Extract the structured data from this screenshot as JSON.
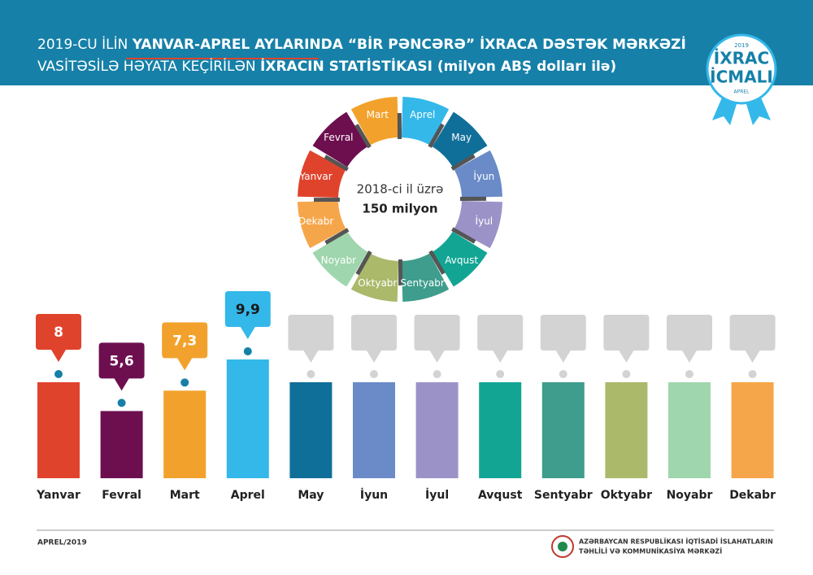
{
  "chart_data": {
    "type": "bar",
    "title_lines": [
      [
        {
          "text": "2019-CU İLİN ",
          "bold": false
        },
        {
          "text": "YANVAR-APREL AYLARINDA",
          "bold": true
        },
        {
          "text": " “BİR PƏNCƏRƏ” İXRACA DƏSTƏK MƏRKƏZİ",
          "bold": true
        }
      ],
      [
        {
          "text": "VASİTƏSİLƏ HƏYATA KEÇİRİLƏN ",
          "bold": false
        },
        {
          "text": "İXRACIN STATİSTİKASI (milyon ABŞ dolları ilə)",
          "bold": true
        }
      ]
    ],
    "badge": {
      "year": "2019",
      "line1": "İXRAC",
      "line2": "İCMALI",
      "month": "APREL"
    },
    "ring_center": {
      "line1": "2018-ci il üzrə",
      "line2": "150 milyon"
    },
    "categories": [
      "Yanvar",
      "Fevral",
      "Mart",
      "Aprel",
      "May",
      "İyun",
      "İyul",
      "Avqust",
      "Sentyabr",
      "Oktyabr",
      "Noyabr",
      "Dekabr"
    ],
    "values": [
      8,
      5.6,
      7.3,
      9.9,
      null,
      null,
      null,
      null,
      null,
      null,
      null,
      null
    ],
    "value_labels": [
      "8",
      "5,6",
      "7,3",
      "9,9",
      null,
      null,
      null,
      null,
      null,
      null,
      null,
      null
    ],
    "colors": [
      "#e0432c",
      "#6d0f4f",
      "#f2a22c",
      "#34b8ea",
      "#0f6f99",
      "#6a8bc8",
      "#9b93c8",
      "#12a594",
      "#3e9d8c",
      "#aab96a",
      "#9fd6ad",
      "#f6a64a"
    ],
    "footer": {
      "date": "APREL/2019",
      "org_line1": "AZƏRBAYCAN RESPUBLİKASI İQTİSADİ İSLAHATLARIN",
      "org_line2": "TƏHLİLİ VƏ KOMMUNİKASİYA MƏRKƏZİ"
    }
  }
}
